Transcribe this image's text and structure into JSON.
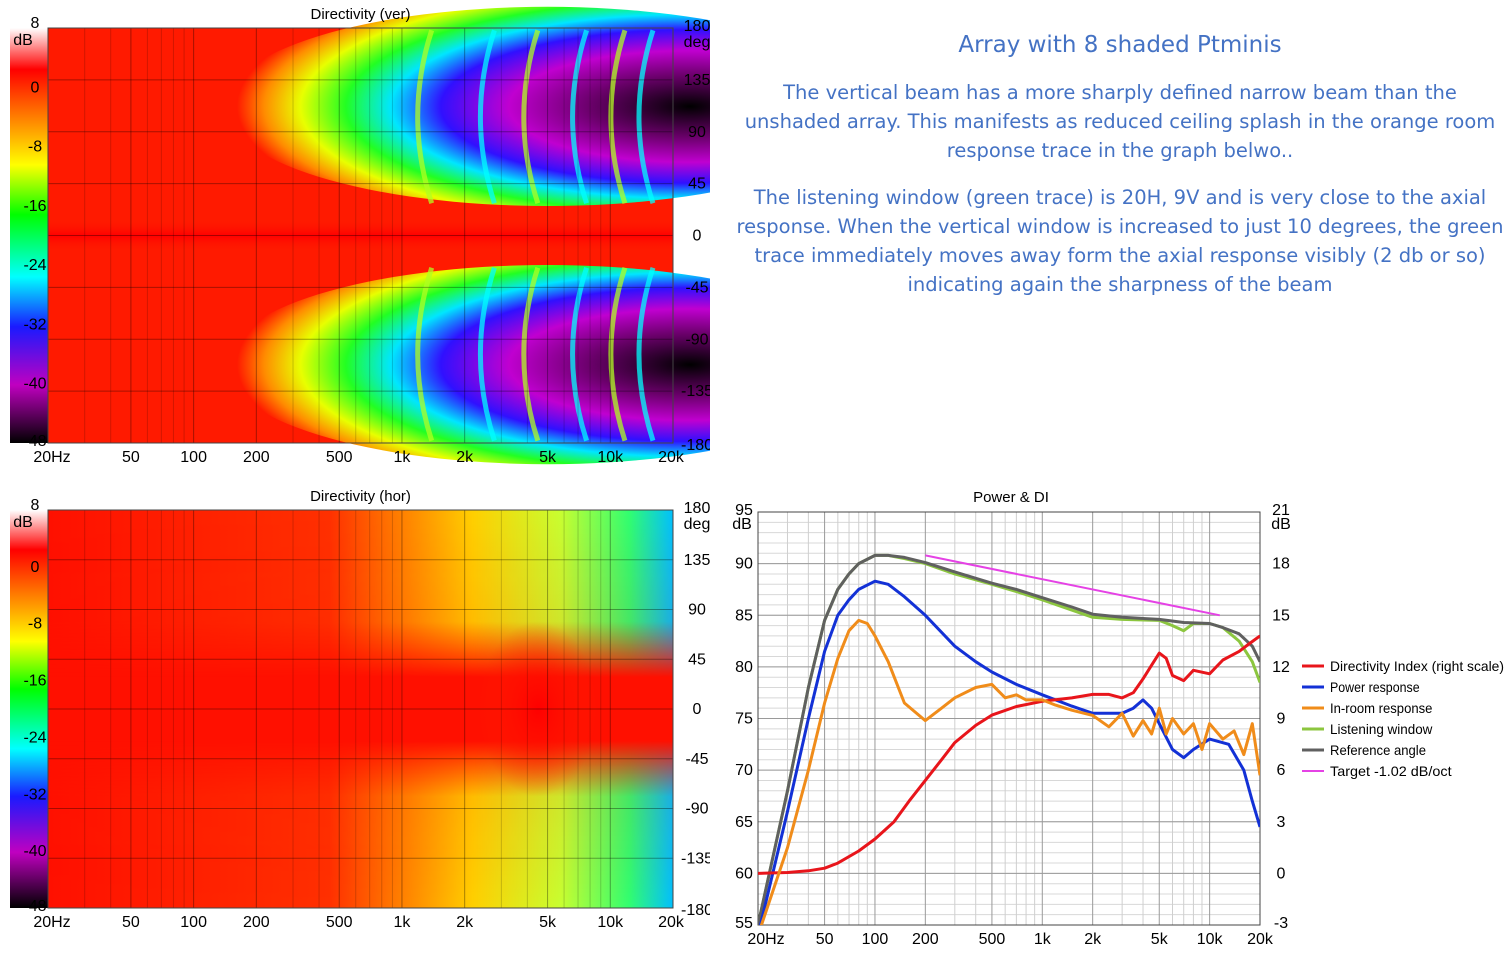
{
  "heading": "Array with 8 shaded Ptminis",
  "paragraphs": [
    "The vertical beam has a more sharply defined narrow beam than the unshaded array.  This manifests as reduced ceiling splash in the orange room response trace in the graph belwo..",
    "The listening window (green trace) is 20H, 9V and is very close to the axial response.  When the vertical window is increased to just 10 degrees, the green trace immediately moves away form the axial response visibly (2 db or so) indicating again the sharpness of the beam"
  ],
  "chart_data": [
    {
      "type": "heatmap",
      "title": "Directivity (ver)",
      "x_ticks": [
        "20Hz",
        "50",
        "100",
        "200",
        "500",
        "1k",
        "2k",
        "5k",
        "10k",
        "20k"
      ],
      "x_tick_values": [
        20,
        50,
        100,
        200,
        500,
        1000,
        2000,
        5000,
        10000,
        20000
      ],
      "y_ticks": [
        "180",
        "135",
        "90",
        "45",
        "0",
        "-45",
        "-90",
        "-135",
        "-180"
      ],
      "y_unit": "deg",
      "y_range": [
        -180,
        180
      ],
      "scale_ticks": [
        "8",
        "0",
        "-8",
        "-16",
        "-24",
        "-32",
        "-40",
        "-48"
      ],
      "scale_unit": "dB",
      "scale_range": [
        -48,
        8
      ],
      "pattern": "narrow vertical beam"
    },
    {
      "type": "heatmap",
      "title": "Directivity (hor)",
      "x_ticks": [
        "20Hz",
        "50",
        "100",
        "200",
        "500",
        "1k",
        "2k",
        "5k",
        "10k",
        "20k"
      ],
      "x_tick_values": [
        20,
        50,
        100,
        200,
        500,
        1000,
        2000,
        5000,
        10000,
        20000
      ],
      "y_ticks": [
        "180",
        "135",
        "90",
        "45",
        "0",
        "-45",
        "-90",
        "-135",
        "-180"
      ],
      "y_unit": "deg",
      "y_range": [
        -180,
        180
      ],
      "scale_ticks": [
        "8",
        "0",
        "-8",
        "-16",
        "-24",
        "-32",
        "-40",
        "-48"
      ],
      "scale_unit": "dB",
      "scale_range": [
        -48,
        8
      ],
      "pattern": "wide horizontal dispersion"
    },
    {
      "type": "line",
      "title": "Power & DI",
      "x_scale": "log",
      "xlim": [
        20,
        20000
      ],
      "x_ticks": [
        "20Hz",
        "50",
        "100",
        "200",
        "500",
        "1k",
        "2k",
        "5k",
        "10k",
        "20k"
      ],
      "x_tick_values": [
        20,
        50,
        100,
        200,
        500,
        1000,
        2000,
        5000,
        10000,
        20000
      ],
      "ylim": [
        55,
        95
      ],
      "y_ticks": [
        "95",
        "90",
        "85",
        "80",
        "75",
        "70",
        "65",
        "60",
        "55"
      ],
      "y_unit": "dB",
      "y2lim": [
        -3,
        21
      ],
      "y2_ticks": [
        "21",
        "18",
        "15",
        "12",
        "9",
        "6",
        "3",
        "0",
        "-3"
      ],
      "y2_unit": "dB",
      "legend_position": "right",
      "series": [
        {
          "name": "Directivity Index (right scale)",
          "color": "#e8151b",
          "axis": "right",
          "x": [
            20,
            30,
            40,
            50,
            60,
            80,
            100,
            130,
            160,
            200,
            250,
            300,
            400,
            500,
            700,
            1000,
            1500,
            2000,
            2500,
            3000,
            3500,
            4000,
            4500,
            5000,
            5500,
            6000,
            7000,
            8000,
            10000,
            12000,
            15000,
            17000,
            20000
          ],
          "y": [
            0,
            0.05,
            0.15,
            0.3,
            0.6,
            1.3,
            2.0,
            3.0,
            4.2,
            5.4,
            6.6,
            7.6,
            8.6,
            9.2,
            9.7,
            10.0,
            10.2,
            10.4,
            10.4,
            10.2,
            10.5,
            11.3,
            12.1,
            12.8,
            12.5,
            11.5,
            11.2,
            11.8,
            11.6,
            12.4,
            12.9,
            13.3,
            13.8
          ]
        },
        {
          "name": "Power response",
          "color": "#1331d6",
          "axis": "left",
          "x": [
            20,
            30,
            40,
            50,
            60,
            70,
            80,
            100,
            120,
            150,
            200,
            300,
            400,
            500,
            700,
            1000,
            1500,
            2000,
            3000,
            3500,
            4000,
            4500,
            5000,
            6000,
            7000,
            8000,
            10000,
            13000,
            16000,
            18000,
            20000
          ],
          "y": [
            54,
            66,
            75,
            81.5,
            85,
            86.5,
            87.5,
            88.3,
            88,
            86.8,
            85,
            82,
            80.5,
            79.5,
            78.3,
            77.3,
            76.2,
            75.5,
            75.5,
            76,
            76.8,
            76,
            74.5,
            72,
            71.2,
            72,
            73,
            72.5,
            70,
            67,
            64.5
          ]
        },
        {
          "name": "In-room response",
          "color": "#f08c1a",
          "axis": "left",
          "x": [
            20,
            30,
            40,
            50,
            60,
            70,
            80,
            90,
            100,
            120,
            150,
            200,
            250,
            300,
            400,
            500,
            600,
            700,
            800,
            1000,
            1200,
            1500,
            2000,
            2500,
            3000,
            3500,
            4000,
            4500,
            5000,
            5500,
            6000,
            7000,
            8000,
            9000,
            10000,
            12000,
            14000,
            16000,
            18000,
            20000
          ],
          "y": [
            54,
            62.5,
            70,
            76.5,
            80.8,
            83.5,
            84.5,
            84.2,
            83,
            80.5,
            76.5,
            74.8,
            76,
            77,
            78,
            78.3,
            77,
            77.3,
            76.8,
            76.8,
            76.3,
            75.8,
            75.3,
            74.2,
            75.5,
            73.3,
            74.8,
            73.5,
            76,
            73.5,
            75,
            73.5,
            74.5,
            72,
            74.5,
            73,
            73.8,
            71.5,
            74.5,
            69.5
          ]
        },
        {
          "name": "Listening window",
          "color": "#8cc63f",
          "axis": "left",
          "x": [
            20,
            30,
            40,
            50,
            60,
            70,
            80,
            100,
            120,
            150,
            200,
            300,
            500,
            700,
            1000,
            1500,
            2000,
            3000,
            5000,
            6000,
            7000,
            8000,
            10000,
            12000,
            15000,
            18000,
            20000
          ],
          "y": [
            55,
            68,
            78,
            84.5,
            87.5,
            89,
            90,
            90.8,
            90.8,
            90.5,
            90,
            89,
            88,
            87.3,
            86.5,
            85.5,
            84.8,
            84.6,
            84.5,
            84,
            83.5,
            84.2,
            84.2,
            83.8,
            82.5,
            80.5,
            78.5
          ]
        },
        {
          "name": "Reference angle",
          "color": "#606060",
          "axis": "left",
          "x": [
            20,
            30,
            40,
            50,
            60,
            70,
            80,
            100,
            120,
            150,
            200,
            300,
            500,
            700,
            1000,
            1500,
            2000,
            3000,
            5000,
            7000,
            10000,
            12000,
            15000,
            18000,
            20000
          ],
          "y": [
            55,
            68,
            78,
            84.5,
            87.5,
            89,
            90,
            90.8,
            90.8,
            90.6,
            90.1,
            89.2,
            88.1,
            87.5,
            86.7,
            85.8,
            85.1,
            84.8,
            84.6,
            84.3,
            84.2,
            83.8,
            83.2,
            82,
            80.5
          ]
        },
        {
          "name": "Target -1.02 dB/oct",
          "color": "#e542e5",
          "axis": "left",
          "x": [
            200,
            11500
          ],
          "y": [
            90.8,
            85
          ]
        }
      ]
    }
  ]
}
